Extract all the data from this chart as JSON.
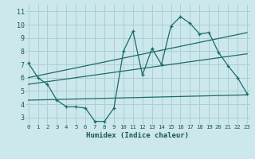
{
  "xlabel": "Humidex (Indice chaleur)",
  "bg_color": "#cce8ec",
  "grid_color": "#aacfd4",
  "line_color": "#1a6b6b",
  "x_ticks": [
    0,
    1,
    2,
    3,
    4,
    5,
    6,
    7,
    8,
    9,
    10,
    11,
    12,
    13,
    14,
    15,
    16,
    17,
    18,
    19,
    20,
    21,
    22,
    23
  ],
  "y_ticks": [
    3,
    4,
    5,
    6,
    7,
    8,
    9,
    10,
    11
  ],
  "ylim": [
    2.5,
    11.5
  ],
  "xlim": [
    -0.3,
    23.3
  ],
  "main_x": [
    0,
    1,
    2,
    3,
    4,
    5,
    6,
    7,
    8,
    9,
    10,
    11,
    12,
    13,
    14,
    15,
    16,
    17,
    18,
    19,
    20,
    21,
    22,
    23
  ],
  "main_y": [
    7.1,
    6.0,
    5.5,
    4.3,
    3.8,
    3.8,
    3.7,
    2.7,
    2.7,
    3.7,
    8.0,
    9.5,
    6.2,
    8.2,
    7.0,
    9.9,
    10.6,
    10.1,
    9.3,
    9.4,
    7.9,
    6.9,
    6.0,
    4.8
  ],
  "trend1_x": [
    0,
    23
  ],
  "trend1_y": [
    6.0,
    9.4
  ],
  "trend2_x": [
    0,
    23
  ],
  "trend2_y": [
    5.5,
    7.8
  ],
  "trend3_x": [
    0,
    23
  ],
  "trend3_y": [
    4.3,
    4.7
  ]
}
